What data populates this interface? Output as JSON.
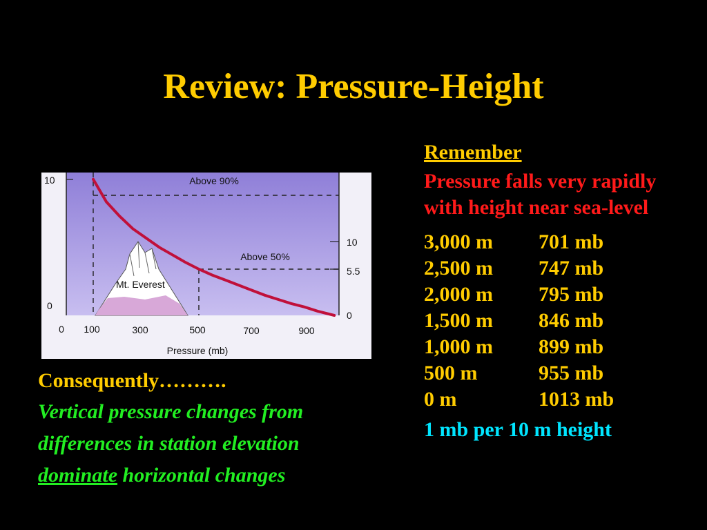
{
  "slide": {
    "title": "Review: Pressure-Height",
    "remember_label": "Remember",
    "red_note": "Pressure falls very rapidly with height near sea-level",
    "table": [
      {
        "height": "3,000 m",
        "pressure": "701 mb"
      },
      {
        "height": "2,500 m",
        "pressure": "747 mb"
      },
      {
        "height": "2,000 m",
        "pressure": "795 mb"
      },
      {
        "height": "1,500 m",
        "pressure": "846 mb"
      },
      {
        "height": "1,000 m",
        "pressure": "899 mb"
      },
      {
        "height": "500 m",
        "pressure": "955 mb"
      },
      {
        "height": "0 m",
        "pressure": "1013 mb"
      }
    ],
    "rule": "1 mb per 10 m height",
    "consequently": "Consequently……….",
    "green_line_1": "Vertical pressure changes from",
    "green_line_2": "differences in station elevation",
    "green_dominate": "dominate",
    "green_rest": " horizontal changes"
  },
  "colors": {
    "background": "#000000",
    "title": "#FFCC00",
    "red": "#FF1A1A",
    "cyan": "#00E5FF",
    "green": "#22EE22",
    "curve": "#C0103A",
    "plot_bg_top": "#8F7FD8",
    "plot_bg_bottom": "#C8BEF0",
    "mountain_snow": "#FFFFFF",
    "mountain_base": "#D8A8D8"
  },
  "chart_data": {
    "type": "line",
    "xlabel": "Pressure (mb)",
    "x_ticks": [
      "0",
      "100",
      "300",
      "500",
      "700",
      "900"
    ],
    "left_ticks": [
      "10",
      "0"
    ],
    "right_ticks": [
      "10",
      "5.5",
      "0"
    ],
    "annotations": {
      "above_90": "Above 90%",
      "above_50": "Above 50%",
      "mountain": "Mt. Everest"
    },
    "series": [
      {
        "x": [
          100,
          150,
          200,
          250,
          300,
          350,
          400,
          450,
          500,
          550,
          600,
          650,
          700,
          750,
          800,
          850,
          900,
          950,
          1013
        ],
        "y": [
          16.2,
          13.5,
          11.8,
          10.3,
          9.2,
          8.1,
          7.2,
          6.3,
          5.5,
          4.8,
          4.2,
          3.6,
          3.0,
          2.4,
          1.9,
          1.4,
          1.0,
          0.5,
          0
        ]
      }
    ],
    "reference_lines": [
      {
        "pressure": 100,
        "height": 16
      },
      {
        "pressure": 500,
        "height": 5.5
      }
    ]
  }
}
